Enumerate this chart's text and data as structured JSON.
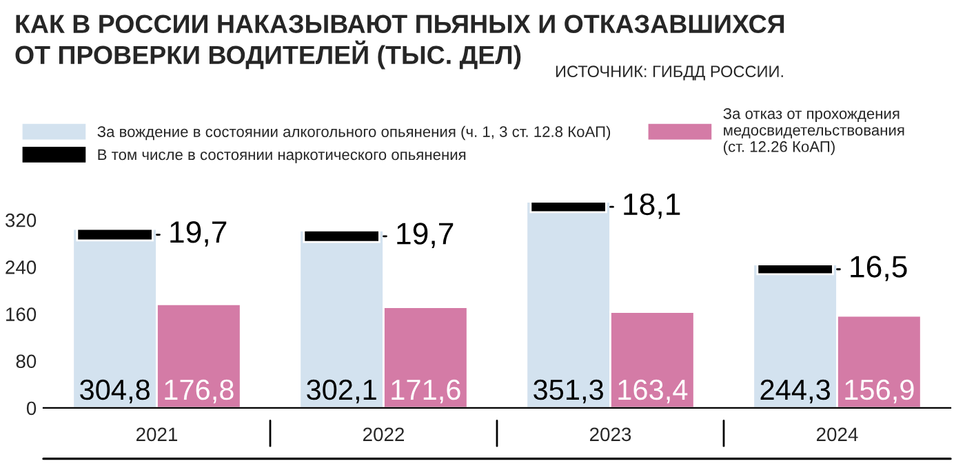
{
  "chart_data": {
    "type": "bar",
    "title": "КАК В РОССИИ НАКАЗЫВАЮТ ПЬЯНЫХ И ОТКАЗАВШИХСЯ\nОТ ПРОВЕРКИ ВОДИТЕЛЕЙ (ТЫС. ДЕЛ)",
    "annotations": [
      "ИСТОЧНИК: ГИБДД РОССИИ."
    ],
    "categories": [
      "2021",
      "2022",
      "2023",
      "2024"
    ],
    "series": [
      {
        "name": "За вождение в состоянии алкогольного опьянения (ч. 1, 3 ст. 12.8 КоАП)",
        "color": "#d3e2ef",
        "values": [
          304.8,
          302.1,
          351.3,
          244.3
        ],
        "value_labels": [
          "304,8",
          "302,1",
          "351,3",
          "244,3"
        ]
      },
      {
        "name": "В том числе в состоянии наркотического опьянения",
        "color": "#000000",
        "values": [
          19.7,
          19.7,
          18.1,
          16.5
        ],
        "base": [
          285.1,
          282.4,
          333.2,
          227.8
        ],
        "value_labels": [
          "19,7",
          "19,7",
          "18,1",
          "16,5"
        ]
      },
      {
        "name": "За отказ от прохождения\nмедосвидетельствования\n(ст. 12.26 КоАП)",
        "color": "#d47ba6",
        "values": [
          176.8,
          171.6,
          163.4,
          156.9
        ],
        "value_labels": [
          "176,8",
          "171,6",
          "163,4",
          "156,9"
        ]
      }
    ],
    "ylim": [
      0,
      360
    ],
    "yticks": [
      0,
      80,
      160,
      240,
      320
    ],
    "grid": false,
    "legend": "top"
  }
}
